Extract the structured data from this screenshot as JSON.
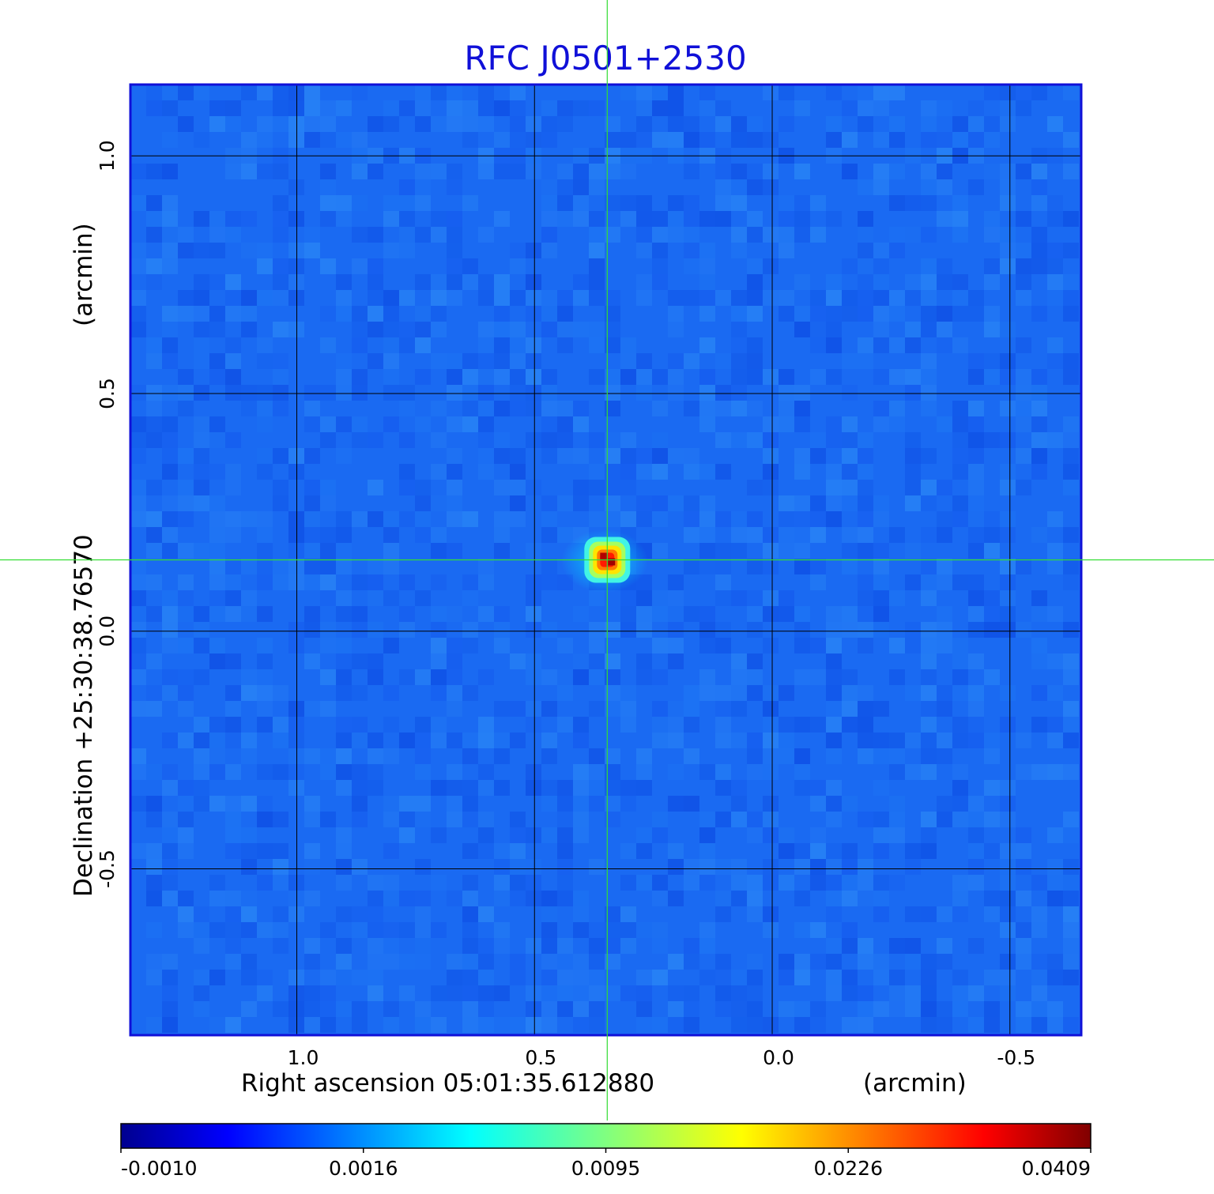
{
  "chart_data": {
    "type": "heatmap",
    "title": "RFC J0501+2530",
    "xlabel": "Right ascension  05:01:35.612880",
    "xunit": "(arcmin)",
    "ylabel": "Declination  +25:30:38.76570",
    "yunit": "(arcmin)",
    "xlim": [
      1.35,
      -0.65
    ],
    "ylim": [
      -0.85,
      1.15
    ],
    "x_reversed": true,
    "xticks": [
      1.0,
      0.5,
      0.0,
      -0.5
    ],
    "xtick_labels": [
      "1.0",
      "0.5",
      "0.0",
      "-0.5"
    ],
    "yticks": [
      1.0,
      0.5,
      0.0,
      -0.5
    ],
    "ytick_labels": [
      "1.0",
      "0.5",
      "0.0",
      "-0.5"
    ],
    "grid": true,
    "crosshair": {
      "x": 0.347,
      "y": 0.15,
      "color": "#33dd33"
    },
    "source_peak": {
      "x": 0.347,
      "y": 0.15,
      "value": 0.0409
    },
    "colorbar": {
      "colormap": "jet",
      "ticks": [
        "-0.0010",
        "0.0016",
        "0.0095",
        "0.0226",
        "0.0409"
      ],
      "vmin": -0.001,
      "vmax": 0.0409
    }
  }
}
